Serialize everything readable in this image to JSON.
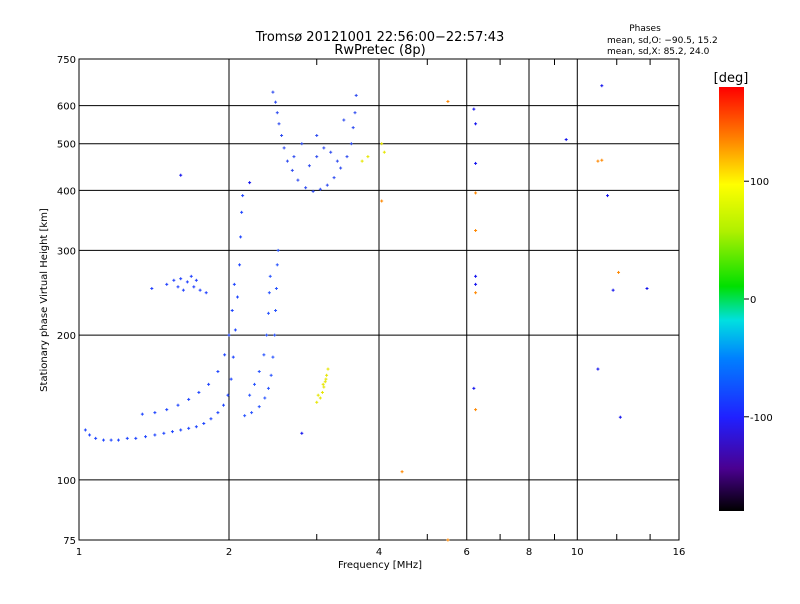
{
  "header": {
    "title_line1": "Tromsø 20121001 22:56:00−22:57:43",
    "title_line2": "RwPretec (8p)"
  },
  "stats": {
    "heading": "Phases",
    "line_o": "mean, sd,O: −90.5, 15.2",
    "line_x": "mean, sd,X:  85.2, 24.0"
  },
  "chart_data": {
    "type": "scatter",
    "title": "Tromsø 20121001 22:56:00−22:57:43",
    "subtitle": "RwPretec (8p)",
    "xlabel": "Frequency [MHz]",
    "ylabel": "Stationary phase Virtual Height [km]",
    "x_scale": "log",
    "y_scale": "log",
    "xlim": [
      1,
      16
    ],
    "ylim": [
      75,
      750
    ],
    "x_ticks": [
      1,
      2,
      4,
      6,
      8,
      10,
      16
    ],
    "x_tick_labels": [
      "1",
      "2",
      "4",
      "6",
      "8",
      "10",
      "16"
    ],
    "y_ticks": [
      75,
      100,
      200,
      300,
      400,
      500,
      600,
      750
    ],
    "y_tick_labels": [
      "75",
      "100",
      "200",
      "300",
      "400",
      "500",
      "600",
      "750"
    ],
    "grid": true,
    "colorbar": {
      "label": "[deg]",
      "range": [
        -180,
        180
      ],
      "ticks": [
        -100,
        0,
        100
      ],
      "tick_labels": [
        "-100",
        "0",
        "100"
      ]
    },
    "series": [
      {
        "trace": "O-mode low layer (E/F1 trace)",
        "phase_deg": -100,
        "color": "#1d44ff",
        "points": [
          [
            1.03,
            127
          ],
          [
            1.05,
            124
          ],
          [
            1.08,
            122
          ],
          [
            1.12,
            121
          ],
          [
            1.16,
            121
          ],
          [
            1.2,
            121
          ],
          [
            1.25,
            122
          ],
          [
            1.3,
            122
          ],
          [
            1.36,
            123
          ],
          [
            1.42,
            124
          ],
          [
            1.48,
            125
          ],
          [
            1.54,
            126
          ],
          [
            1.6,
            127
          ],
          [
            1.66,
            128
          ],
          [
            1.72,
            129
          ],
          [
            1.78,
            131
          ],
          [
            1.84,
            134
          ],
          [
            1.9,
            138
          ],
          [
            1.95,
            143
          ],
          [
            1.99,
            150
          ],
          [
            2.02,
            162
          ],
          [
            2.04,
            180
          ],
          [
            2.06,
            205
          ],
          [
            2.08,
            240
          ],
          [
            2.1,
            280
          ],
          [
            2.11,
            320
          ],
          [
            2.12,
            360
          ],
          [
            2.13,
            390
          ],
          [
            1.34,
            137
          ],
          [
            1.42,
            138
          ],
          [
            1.5,
            140
          ],
          [
            1.58,
            143
          ],
          [
            1.66,
            147
          ],
          [
            1.74,
            152
          ],
          [
            1.82,
            158
          ],
          [
            1.9,
            168
          ],
          [
            1.96,
            182
          ],
          [
            2.0,
            200
          ],
          [
            2.03,
            225
          ],
          [
            2.05,
            255
          ]
        ]
      },
      {
        "trace": "O-mode second trace near 2.1-2.5 MHz",
        "phase_deg": -105,
        "color": "#2a55ff",
        "points": [
          [
            2.15,
            136
          ],
          [
            2.22,
            138
          ],
          [
            2.3,
            142
          ],
          [
            2.36,
            148
          ],
          [
            2.4,
            155
          ],
          [
            2.43,
            165
          ],
          [
            2.45,
            180
          ],
          [
            2.47,
            200
          ],
          [
            2.48,
            225
          ],
          [
            2.49,
            250
          ],
          [
            2.5,
            280
          ],
          [
            2.51,
            300
          ],
          [
            2.2,
            150
          ],
          [
            2.25,
            158
          ],
          [
            2.3,
            168
          ],
          [
            2.35,
            182
          ],
          [
            2.38,
            200
          ],
          [
            2.4,
            222
          ],
          [
            2.41,
            245
          ],
          [
            2.42,
            265
          ]
        ]
      },
      {
        "trace": "Spread patch near 1.5-1.8 MHz at 250 km",
        "phase_deg": -100,
        "color": "#2040ff",
        "points": [
          [
            1.4,
            250
          ],
          [
            1.5,
            255
          ],
          [
            1.55,
            260
          ],
          [
            1.6,
            262
          ],
          [
            1.65,
            258
          ],
          [
            1.7,
            252
          ],
          [
            1.75,
            248
          ],
          [
            1.8,
            245
          ],
          [
            1.58,
            252
          ],
          [
            1.68,
            265
          ],
          [
            1.72,
            260
          ],
          [
            1.62,
            248
          ]
        ]
      },
      {
        "trace": "F-layer spread near 2.4-3.5 MHz at 400-650 km",
        "phase_deg": -95,
        "color": "#2f4cf0",
        "points": [
          [
            2.45,
            640
          ],
          [
            2.48,
            610
          ],
          [
            2.5,
            580
          ],
          [
            2.52,
            550
          ],
          [
            2.55,
            520
          ],
          [
            2.58,
            490
          ],
          [
            2.62,
            460
          ],
          [
            2.68,
            440
          ],
          [
            2.75,
            420
          ],
          [
            2.85,
            405
          ],
          [
            2.95,
            398
          ],
          [
            3.05,
            402
          ],
          [
            3.15,
            410
          ],
          [
            3.25,
            425
          ],
          [
            3.35,
            445
          ],
          [
            3.45,
            470
          ],
          [
            3.52,
            500
          ],
          [
            3.55,
            540
          ],
          [
            3.58,
            580
          ],
          [
            3.6,
            630
          ],
          [
            2.7,
            470
          ],
          [
            2.9,
            450
          ],
          [
            3.0,
            470
          ],
          [
            3.1,
            490
          ],
          [
            3.2,
            480
          ],
          [
            3.3,
            460
          ],
          [
            2.8,
            500
          ],
          [
            3.0,
            520
          ],
          [
            3.4,
            560
          ]
        ]
      },
      {
        "trace": "X-mode echoes near 3 MHz",
        "phase_deg": 90,
        "color": "#e6e600",
        "points": [
          [
            3.0,
            145
          ],
          [
            3.05,
            148
          ],
          [
            3.08,
            152
          ],
          [
            3.1,
            156
          ],
          [
            3.12,
            160
          ],
          [
            3.14,
            165
          ],
          [
            3.16,
            170
          ],
          [
            3.02,
            150
          ],
          [
            3.09,
            158
          ],
          [
            3.13,
            162
          ],
          [
            3.7,
            460
          ],
          [
            3.8,
            470
          ],
          [
            4.05,
            500
          ],
          [
            4.1,
            480
          ]
        ]
      },
      {
        "trace": "Scattered isolated points",
        "phase_deg": -100,
        "color": "#1010ee",
        "points": [
          [
            1.6,
            430
          ],
          [
            2.2,
            415
          ],
          [
            6.2,
            590
          ],
          [
            6.25,
            550
          ],
          [
            6.25,
            455
          ],
          [
            6.25,
            265
          ],
          [
            6.25,
            255
          ],
          [
            6.2,
            155
          ],
          [
            9.5,
            510
          ],
          [
            11.2,
            660
          ],
          [
            11.5,
            390
          ],
          [
            11.8,
            248
          ],
          [
            13.8,
            250
          ],
          [
            11,
            170
          ],
          [
            12.2,
            135
          ],
          [
            2.8,
            125
          ]
        ]
      },
      {
        "trace": "Other-phase isolated points",
        "phase_deg": 80,
        "color": "#ff8800",
        "points": [
          [
            4.05,
            380
          ],
          [
            4.45,
            104
          ],
          [
            5.5,
            75
          ],
          [
            6.25,
            395
          ],
          [
            6.25,
            245
          ],
          [
            11,
            460
          ],
          [
            11.2,
            462
          ],
          [
            12.1,
            270
          ],
          [
            5.5,
            612
          ],
          [
            6.25,
            330
          ],
          [
            6.25,
            140
          ]
        ]
      }
    ]
  }
}
